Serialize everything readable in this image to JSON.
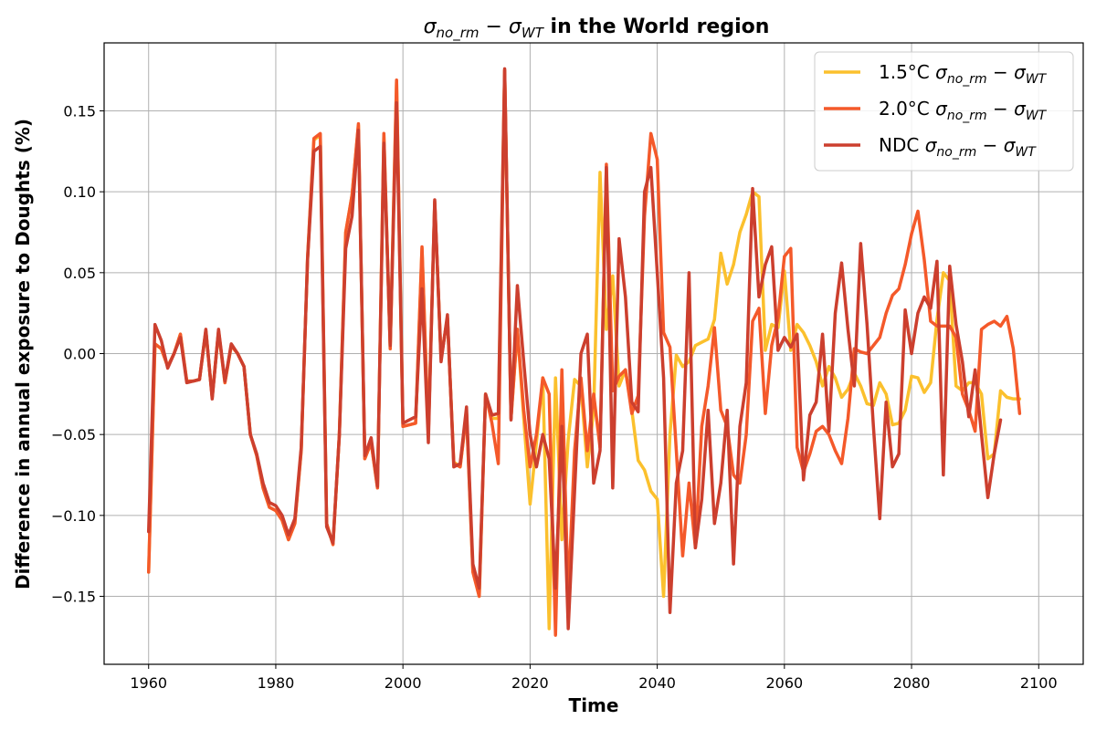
{
  "chart_data": {
    "type": "line",
    "title_prefix": "σ",
    "title_sub1": "no_rm",
    "title_mid": " − σ",
    "title_sub2": "WT",
    "title_suffix": " in the World region",
    "xlabel": "Time",
    "ylabel": "Difference in annual exposure to Doughts (%)",
    "xlim": [
      1953,
      2107
    ],
    "ylim": [
      -0.192,
      0.192
    ],
    "xticks": [
      1960,
      1980,
      2000,
      2020,
      2040,
      2060,
      2080,
      2100
    ],
    "xtick_labels": [
      "1960",
      "1980",
      "2000",
      "2020",
      "2040",
      "2060",
      "2080",
      "2100"
    ],
    "yticks": [
      -0.15,
      -0.1,
      -0.05,
      0.0,
      0.05,
      0.1,
      0.15
    ],
    "ytick_labels": [
      "−0.15",
      "−0.10",
      "−0.05",
      "0.00",
      "0.05",
      "0.10",
      "0.15"
    ],
    "grid": true,
    "legend_position": "top-right",
    "x_start": 1960,
    "x_end": 2100,
    "series": [
      {
        "name": "1.5°C",
        "legend_sub1": "no_rm",
        "legend_sub2": "WT",
        "color": "#fbc02d",
        "values": [
          -0.135,
          0.006,
          0.003,
          -0.008,
          0.0,
          0.012,
          -0.017,
          -0.017,
          -0.016,
          0.014,
          -0.027,
          0.014,
          -0.018,
          0.005,
          0.0,
          -0.008,
          -0.05,
          -0.063,
          -0.083,
          -0.095,
          -0.097,
          -0.103,
          -0.115,
          -0.105,
          -0.06,
          0.059,
          0.132,
          0.135,
          -0.105,
          -0.118,
          -0.05,
          0.075,
          0.098,
          0.141,
          -0.065,
          -0.055,
          -0.083,
          0.135,
          0.003,
          0.168,
          -0.045,
          -0.044,
          -0.043,
          0.065,
          -0.05,
          0.093,
          -0.003,
          0.022,
          -0.067,
          -0.07,
          -0.037,
          -0.134,
          -0.15,
          -0.025,
          -0.04,
          -0.04,
          0.175,
          -0.04,
          0.015,
          -0.04,
          -0.093,
          -0.055,
          -0.015,
          -0.17,
          -0.015,
          -0.115,
          -0.053,
          -0.016,
          -0.02,
          -0.07,
          -0.035,
          0.112,
          0.015,
          0.048,
          -0.02,
          -0.01,
          -0.035,
          -0.066,
          -0.072,
          -0.085,
          -0.09,
          -0.15,
          -0.05,
          -0.001,
          -0.008,
          -0.005,
          0.005,
          0.007,
          0.009,
          0.021,
          0.062,
          0.043,
          0.055,
          0.075,
          0.086,
          0.1,
          0.097,
          0.002,
          0.018,
          0.016,
          0.051,
          0.002,
          0.018,
          0.013,
          0.005,
          -0.005,
          -0.02,
          -0.008,
          -0.015,
          -0.027,
          -0.022,
          -0.012,
          -0.02,
          -0.031,
          -0.032,
          -0.018,
          -0.025,
          -0.044,
          -0.043,
          -0.035,
          -0.014,
          -0.015,
          -0.024,
          -0.018,
          0.021,
          0.05,
          0.045,
          -0.02,
          -0.023,
          -0.018,
          -0.018,
          -0.025,
          -0.065,
          -0.062,
          -0.023,
          -0.027,
          -0.028,
          -0.028
        ],
        "width": 3.5
      },
      {
        "name": "2.0°C",
        "legend_sub1": "no_rm",
        "legend_sub2": "WT",
        "color": "#f4592a",
        "values": [
          -0.135,
          0.006,
          0.003,
          -0.008,
          0.0,
          0.012,
          -0.017,
          -0.017,
          -0.016,
          0.014,
          -0.027,
          0.014,
          -0.018,
          0.005,
          0.0,
          -0.008,
          -0.05,
          -0.063,
          -0.083,
          -0.095,
          -0.097,
          -0.103,
          -0.115,
          -0.105,
          -0.06,
          0.059,
          0.133,
          0.136,
          -0.105,
          -0.118,
          -0.05,
          0.075,
          0.098,
          0.142,
          -0.065,
          -0.055,
          -0.083,
          0.136,
          0.003,
          0.169,
          -0.045,
          -0.044,
          -0.043,
          0.066,
          -0.05,
          0.094,
          -0.003,
          0.022,
          -0.068,
          -0.07,
          -0.037,
          -0.135,
          -0.15,
          -0.025,
          -0.043,
          -0.068,
          0.175,
          -0.04,
          0.015,
          -0.035,
          -0.07,
          -0.05,
          -0.015,
          -0.025,
          -0.174,
          -0.01,
          -0.15,
          -0.06,
          -0.015,
          -0.06,
          -0.025,
          -0.058,
          0.117,
          -0.023,
          -0.014,
          -0.01,
          -0.037,
          -0.026,
          0.085,
          0.136,
          0.12,
          0.013,
          0.004,
          -0.06,
          -0.125,
          -0.08,
          -0.12,
          -0.045,
          -0.02,
          0.016,
          -0.035,
          -0.045,
          -0.075,
          -0.08,
          -0.05,
          0.02,
          0.028,
          -0.037,
          0.005,
          0.022,
          0.06,
          0.065,
          -0.058,
          -0.073,
          -0.062,
          -0.048,
          -0.045,
          -0.05,
          -0.06,
          -0.068,
          -0.04,
          0.003,
          0.001,
          0.0,
          0.005,
          0.01,
          0.025,
          0.036,
          0.04,
          0.055,
          0.074,
          0.088,
          0.058,
          0.02,
          0.017,
          0.017,
          0.017,
          0.01,
          -0.025,
          -0.035,
          -0.048,
          0.015,
          0.018,
          0.02,
          0.017,
          0.023,
          0.003,
          -0.037
        ],
        "width": 3.5
      },
      {
        "name": "NDC",
        "legend_sub1": "no_rm",
        "legend_sub2": "WT",
        "color": "#cc3f2e",
        "values": [
          -0.11,
          0.018,
          0.008,
          -0.009,
          0.0,
          0.01,
          -0.018,
          -0.017,
          -0.016,
          0.015,
          -0.028,
          0.015,
          -0.017,
          0.006,
          0.0,
          -0.008,
          -0.05,
          -0.062,
          -0.08,
          -0.092,
          -0.094,
          -0.1,
          -0.112,
          -0.102,
          -0.058,
          0.058,
          0.125,
          0.128,
          -0.107,
          -0.117,
          -0.05,
          0.065,
          0.085,
          0.138,
          -0.063,
          -0.052,
          -0.082,
          0.13,
          0.005,
          0.155,
          -0.043,
          -0.041,
          -0.039,
          0.04,
          -0.055,
          0.095,
          -0.005,
          0.024,
          -0.07,
          -0.068,
          -0.033,
          -0.13,
          -0.145,
          -0.025,
          -0.038,
          -0.037,
          0.176,
          -0.041,
          0.042,
          -0.005,
          -0.05,
          -0.07,
          -0.05,
          -0.065,
          -0.145,
          -0.045,
          -0.17,
          -0.085,
          0.0,
          0.012,
          -0.08,
          -0.06,
          0.115,
          -0.083,
          0.071,
          0.035,
          -0.03,
          -0.036,
          0.1,
          0.115,
          0.05,
          -0.015,
          -0.16,
          -0.08,
          -0.06,
          0.05,
          -0.12,
          -0.09,
          -0.035,
          -0.105,
          -0.08,
          -0.035,
          -0.13,
          -0.045,
          -0.018,
          0.102,
          0.035,
          0.055,
          0.066,
          0.002,
          0.01,
          0.004,
          0.012,
          -0.078,
          -0.038,
          -0.03,
          0.012,
          -0.048,
          0.025,
          0.056,
          0.015,
          -0.02,
          0.068,
          0.018,
          -0.045,
          -0.102,
          -0.03,
          -0.07,
          -0.062,
          0.027,
          0.0,
          0.025,
          0.035,
          0.028,
          0.057,
          -0.075,
          0.054,
          0.018,
          -0.005,
          -0.039,
          -0.01,
          -0.05,
          -0.089,
          -0.062,
          -0.041
        ],
        "width": 3.5
      }
    ]
  }
}
